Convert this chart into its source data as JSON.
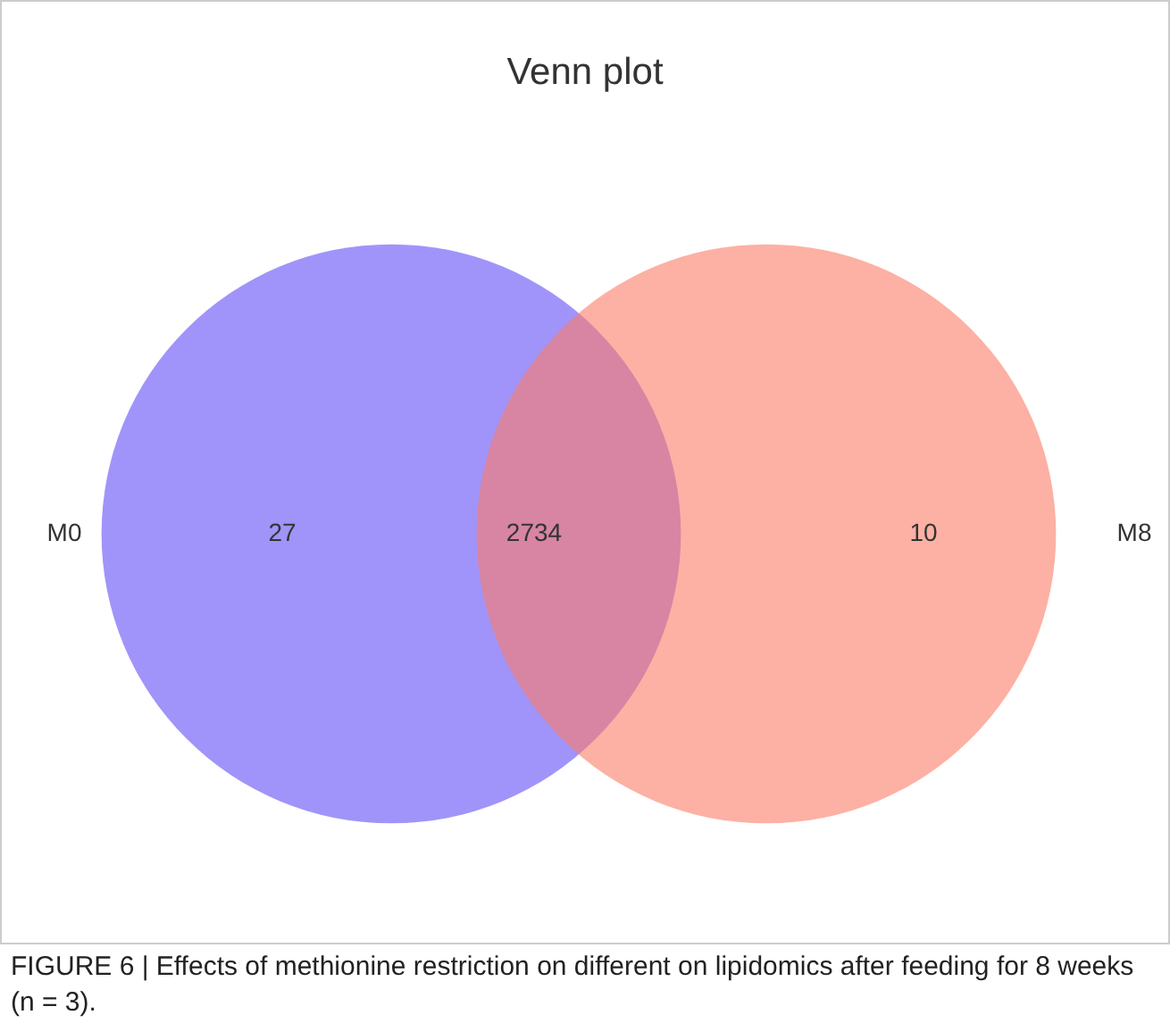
{
  "chart_data": {
    "type": "other",
    "title": "Venn plot",
    "categories": [
      "M0",
      null,
      "M8"
    ],
    "values": [
      27,
      2734,
      10
    ],
    "data_labels": true,
    "colors": [
      "#614df7",
      null,
      "#fc7b67"
    ],
    "annotations": [
      "FIGURE 6 | Effects of methionine restriction on different on lipidomics after feeding for 8 weeks (n = 3)."
    ]
  }
}
